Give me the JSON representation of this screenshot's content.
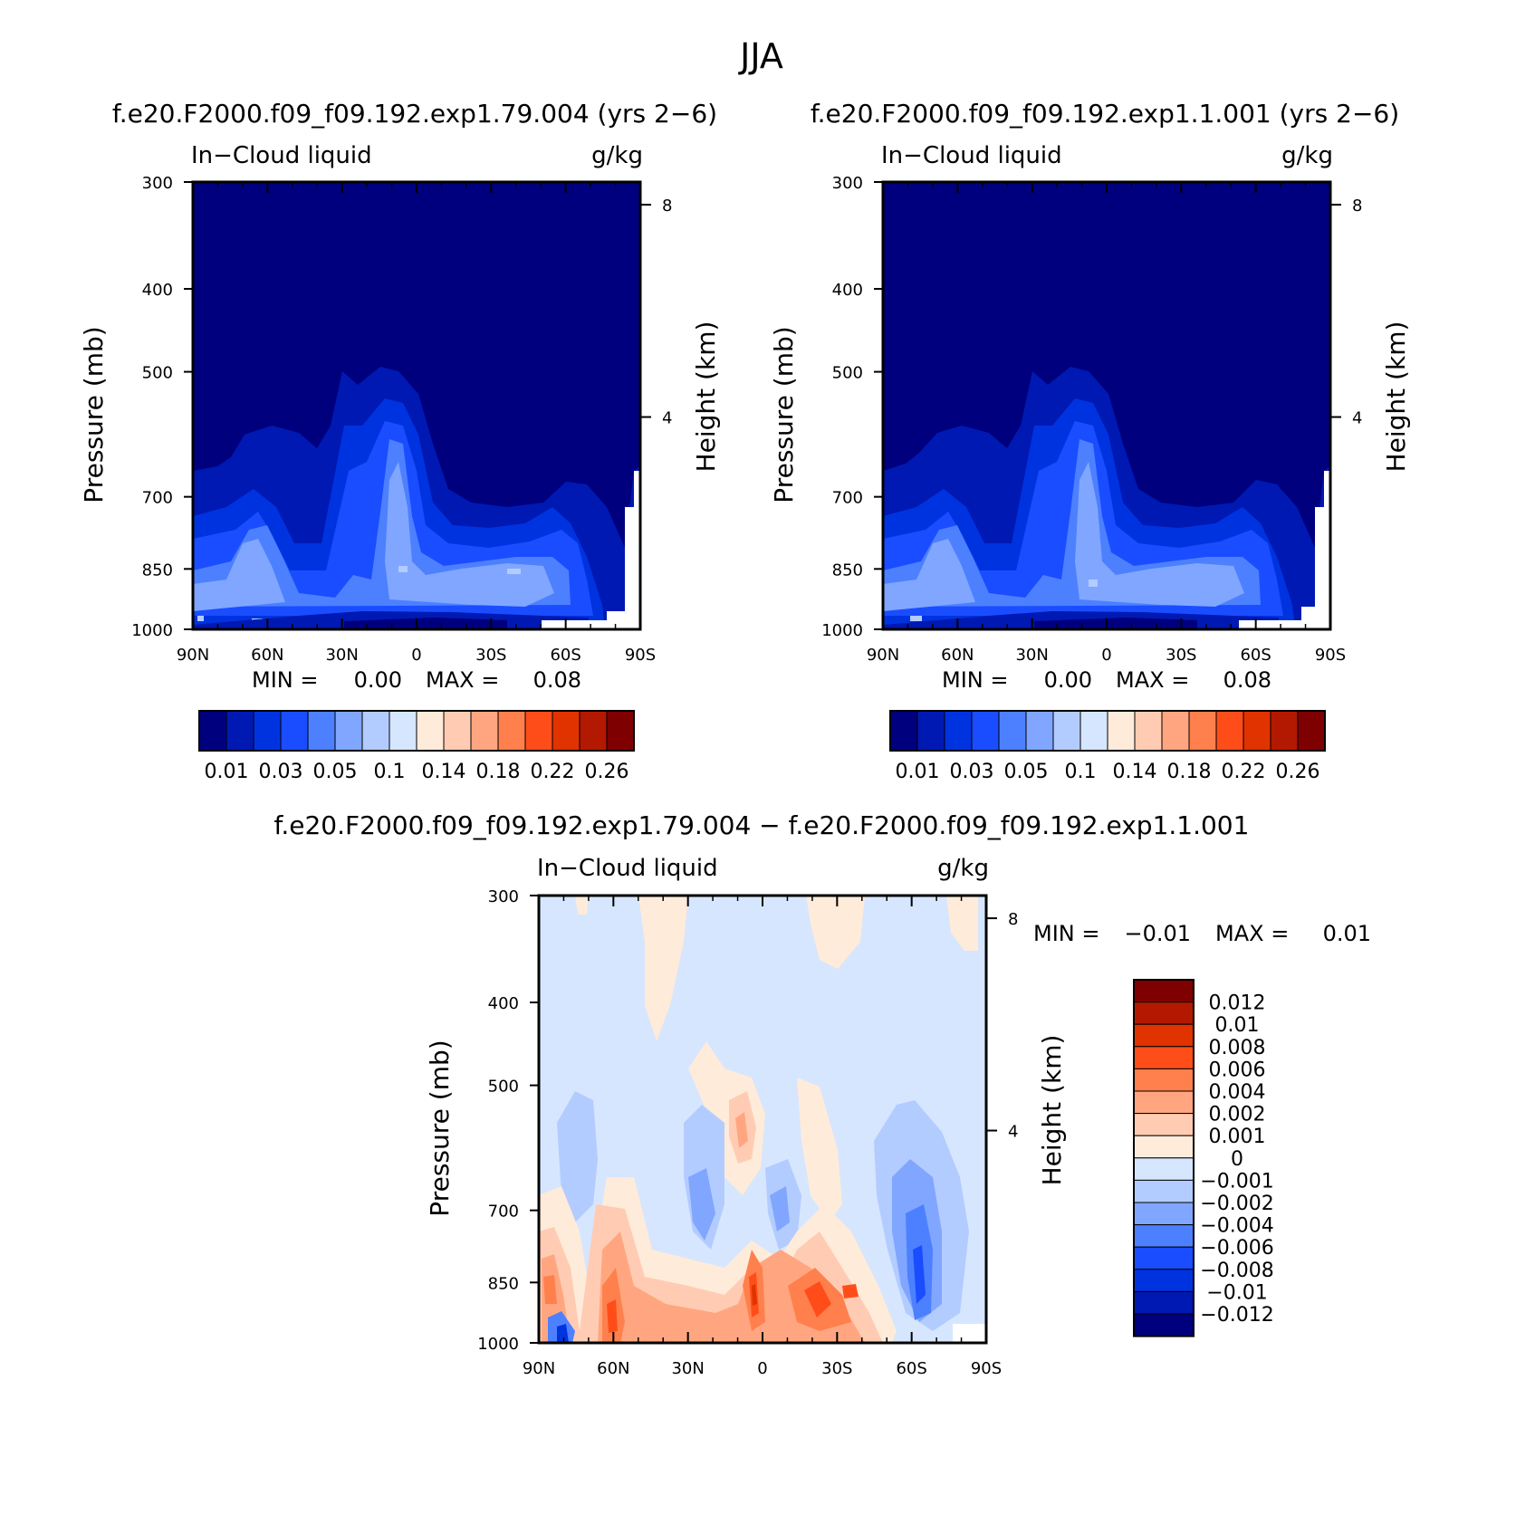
{
  "figure": {
    "title": "JJA"
  },
  "chart_data": [
    {
      "type": "heatmap",
      "title": "f.e20.F2000.f09_f09.192.exp1.79.004 (yrs 2−6)",
      "subtitle_left": "In−Cloud liquid",
      "subtitle_right": "g/kg",
      "ylabel": "Pressure (mb)",
      "y2label": "Height (km)",
      "x_ticks": [
        "90N",
        "60N",
        "30N",
        "0",
        "30S",
        "60S",
        "90S"
      ],
      "x_values": [
        90,
        60,
        30,
        0,
        -30,
        -60,
        -90
      ],
      "y_ticks": [
        "300",
        "400",
        "500",
        "700",
        "850",
        "1000"
      ],
      "y_values": [
        300,
        400,
        500,
        700,
        850,
        1000
      ],
      "y2_ticks": [
        "8",
        "4"
      ],
      "y2_values": [
        8,
        4
      ],
      "ylim": [
        300,
        1000
      ],
      "stats": {
        "min_label": "MIN =",
        "min_value": "0.00",
        "max_label": "MAX =",
        "max_value": "0.08"
      },
      "colorbar": {
        "labels": [
          "0.01",
          "0.03",
          "0.05",
          "0.1",
          "0.14",
          "0.18",
          "0.22",
          "0.26"
        ],
        "levels": [
          0.01,
          0.02,
          0.03,
          0.04,
          0.05,
          0.08,
          0.1,
          0.12,
          0.14,
          0.16,
          0.18,
          0.2,
          0.22,
          0.24,
          0.26
        ]
      }
    },
    {
      "type": "heatmap",
      "title": "f.e20.F2000.f09_f09.192.exp1.1.001 (yrs 2−6)",
      "subtitle_left": "In−Cloud liquid",
      "subtitle_right": "g/kg",
      "ylabel": "Pressure (mb)",
      "y2label": "Height (km)",
      "x_ticks": [
        "90N",
        "60N",
        "30N",
        "0",
        "30S",
        "60S",
        "90S"
      ],
      "x_values": [
        90,
        60,
        30,
        0,
        -30,
        -60,
        -90
      ],
      "y_ticks": [
        "300",
        "400",
        "500",
        "700",
        "850",
        "1000"
      ],
      "y_values": [
        300,
        400,
        500,
        700,
        850,
        1000
      ],
      "y2_ticks": [
        "8",
        "4"
      ],
      "y2_values": [
        8,
        4
      ],
      "ylim": [
        300,
        1000
      ],
      "stats": {
        "min_label": "MIN =",
        "min_value": "0.00",
        "max_label": "MAX =",
        "max_value": "0.08"
      },
      "colorbar": {
        "labels": [
          "0.01",
          "0.03",
          "0.05",
          "0.1",
          "0.14",
          "0.18",
          "0.22",
          "0.26"
        ],
        "levels": [
          0.01,
          0.02,
          0.03,
          0.04,
          0.05,
          0.08,
          0.1,
          0.12,
          0.14,
          0.16,
          0.18,
          0.2,
          0.22,
          0.24,
          0.26
        ]
      }
    },
    {
      "type": "heatmap",
      "title": "f.e20.F2000.f09_f09.192.exp1.79.004 − f.e20.F2000.f09_f09.192.exp1.1.001",
      "subtitle_left": "In−Cloud liquid",
      "subtitle_right": "g/kg",
      "ylabel": "Pressure (mb)",
      "y2label": "Height (km)",
      "x_ticks": [
        "90N",
        "60N",
        "30N",
        "0",
        "30S",
        "60S",
        "90S"
      ],
      "x_values": [
        90,
        60,
        30,
        0,
        -30,
        -60,
        -90
      ],
      "y_ticks": [
        "300",
        "400",
        "500",
        "700",
        "850",
        "1000"
      ],
      "y_values": [
        300,
        400,
        500,
        700,
        850,
        1000
      ],
      "y2_ticks": [
        "8",
        "4"
      ],
      "y2_values": [
        8,
        4
      ],
      "ylim": [
        300,
        1000
      ],
      "stats": {
        "min_label": "MIN =",
        "min_value": "−0.01",
        "max_label": "MAX =",
        "max_value": "0.01"
      },
      "colorbar": {
        "labels": [
          "0.012",
          "0.01",
          "0.008",
          "0.006",
          "0.004",
          "0.002",
          "0.001",
          "0",
          "−0.001",
          "−0.002",
          "−0.004",
          "−0.006",
          "−0.008",
          "−0.01",
          "−0.012"
        ],
        "levels": [
          0.012,
          0.01,
          0.008,
          0.006,
          0.004,
          0.002,
          0.001,
          0,
          -0.001,
          -0.002,
          -0.004,
          -0.006,
          -0.008,
          -0.01,
          -0.012
        ]
      }
    }
  ],
  "palettes": {
    "abs": [
      "#00007f",
      "#0019b3",
      "#0033e0",
      "#1a4dff",
      "#4d80ff",
      "#80a6ff",
      "#b3ccff",
      "#d6e6ff",
      "#ffebd9",
      "#ffccb3",
      "#ffa680",
      "#ff804d",
      "#ff4d1a",
      "#e03300",
      "#b31900",
      "#7f0000"
    ],
    "diff": [
      "#7f0000",
      "#b31900",
      "#e03300",
      "#ff4d1a",
      "#ff804d",
      "#ffa680",
      "#ffccb3",
      "#ffebd9",
      "#d6e6ff",
      "#b3ccff",
      "#80a6ff",
      "#4d80ff",
      "#1a4dff",
      "#0033e0",
      "#0019b3",
      "#00007f"
    ]
  }
}
